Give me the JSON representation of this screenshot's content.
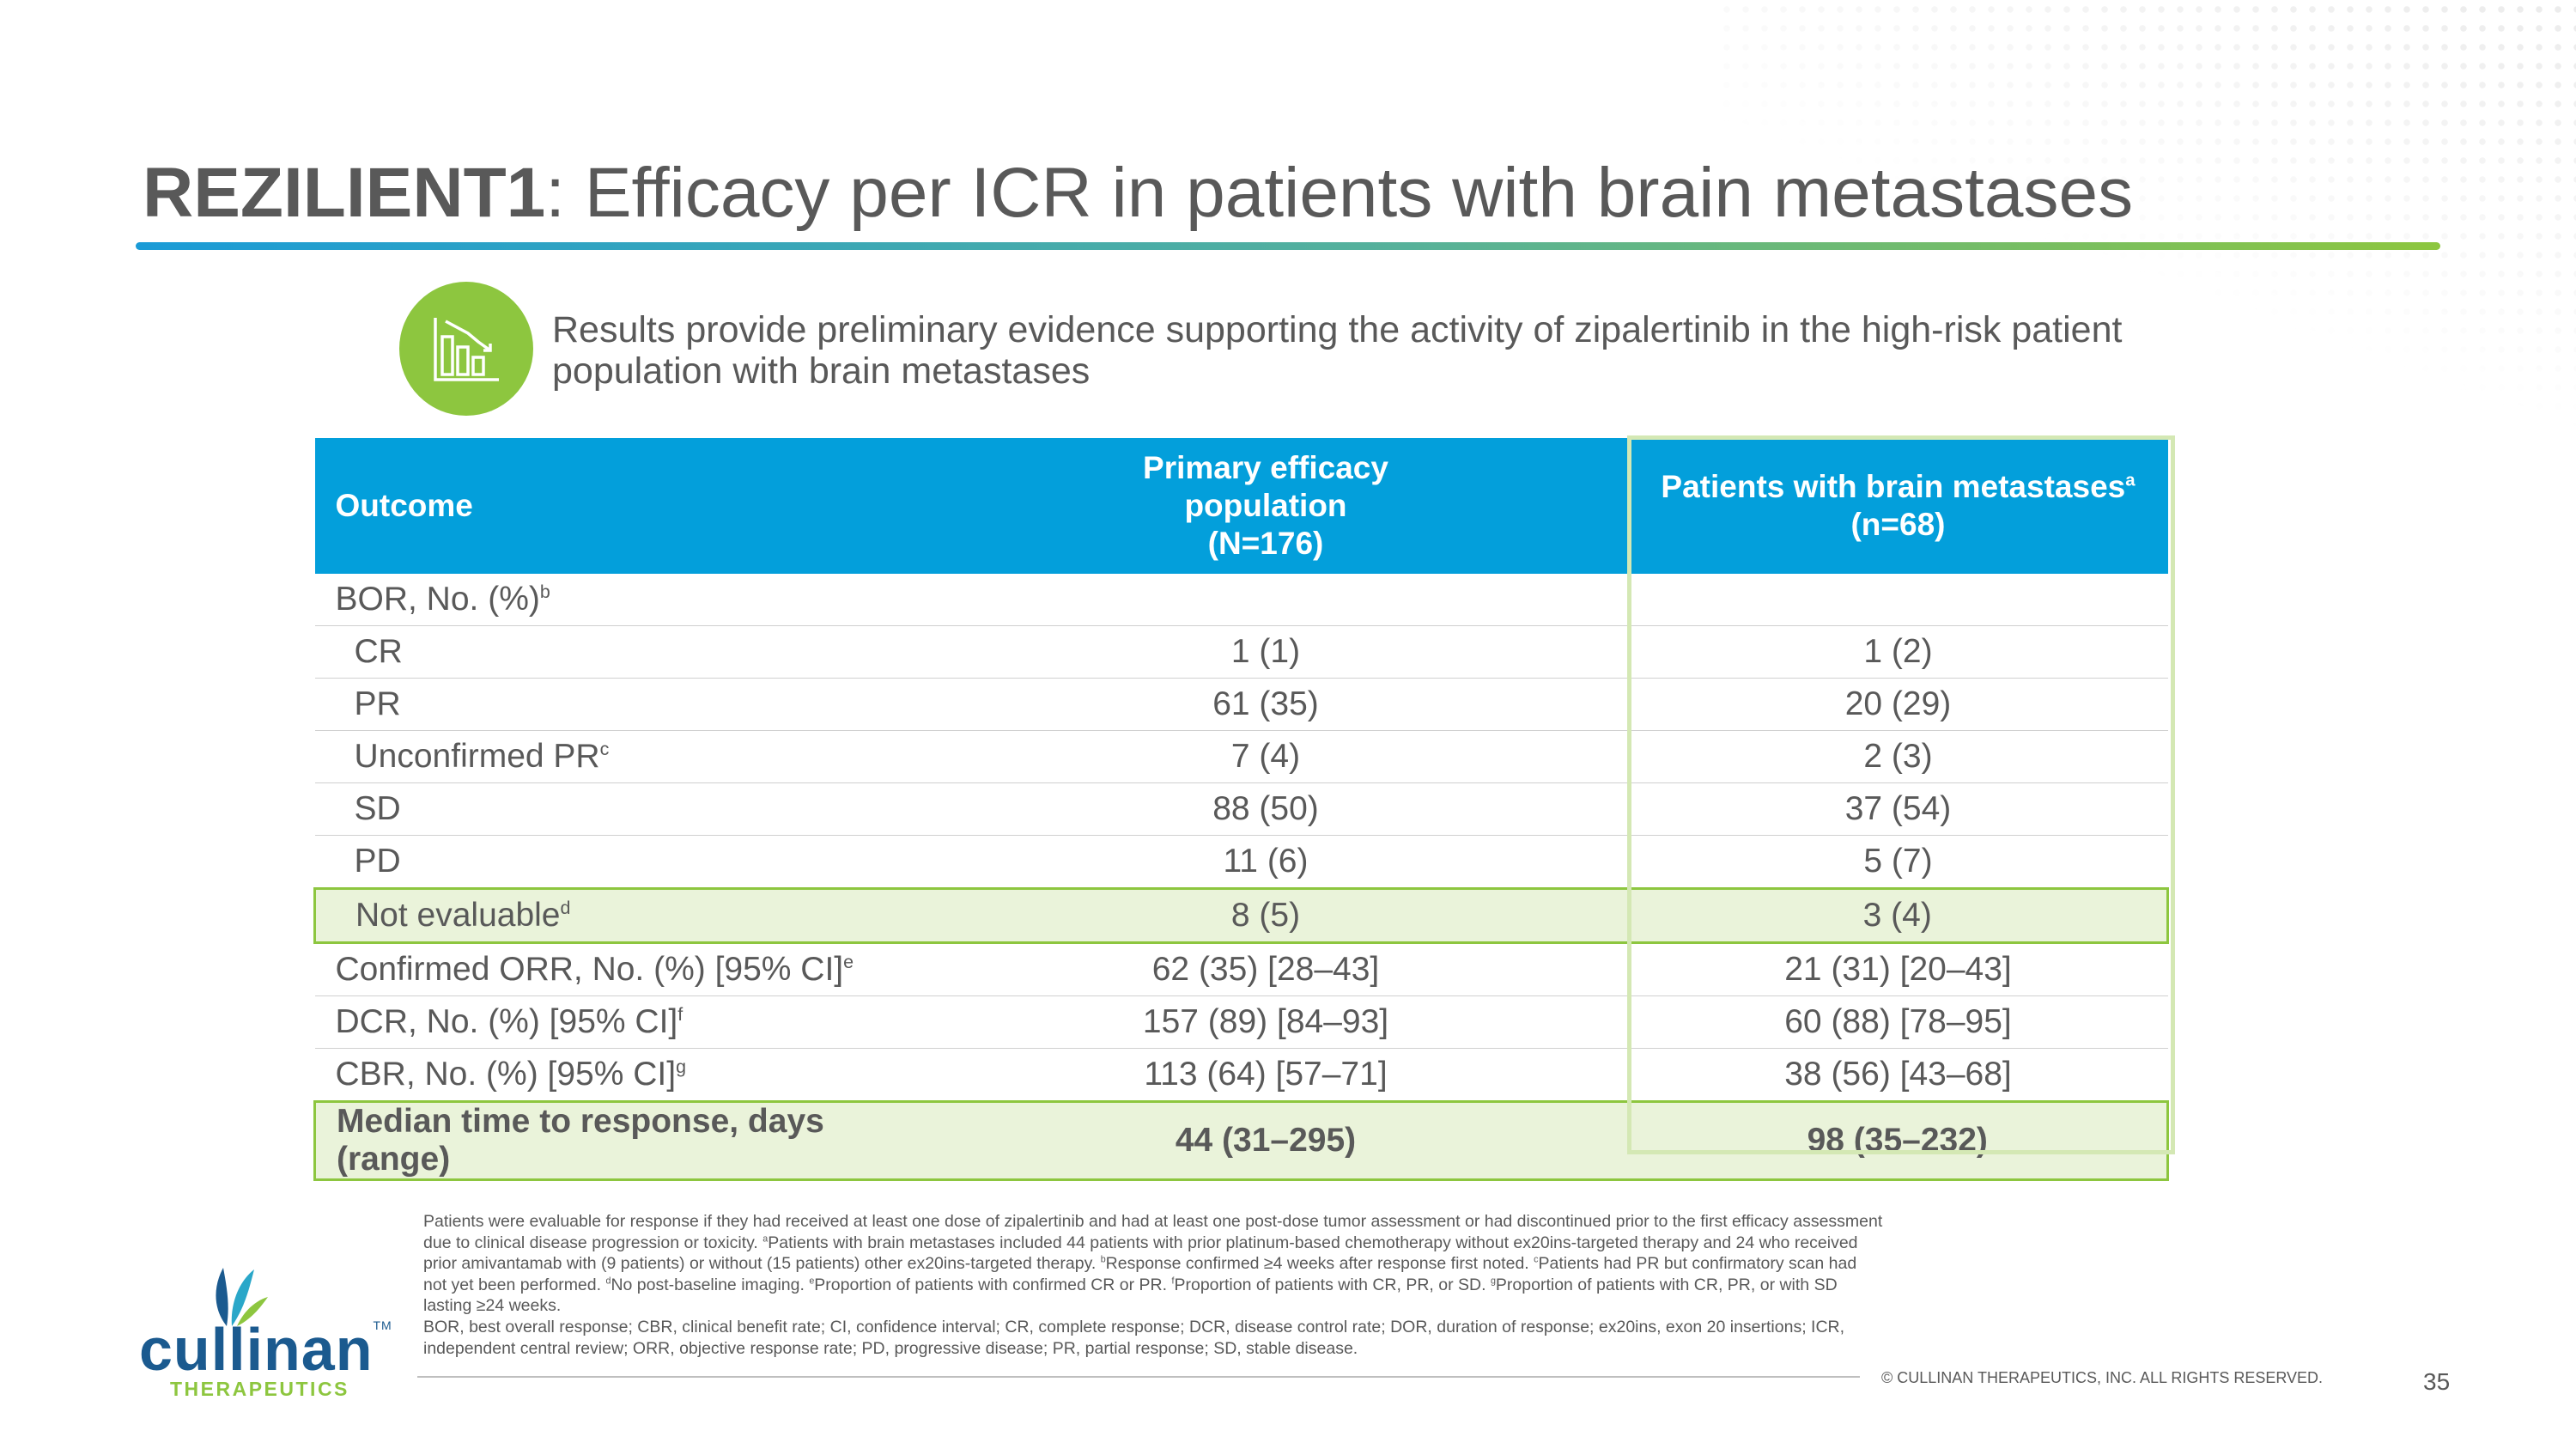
{
  "slide": {
    "title_bold": "REZILIENT1",
    "title_rest": ": Efficacy per ICR in patients with brain metastases",
    "key_message_icon": "bar-chart-icon",
    "key_message": "Results provide preliminary evidence supporting the activity of zipalertinib in the high-risk patient population with brain metastases",
    "page_number": "35",
    "copyright": "© CULLINAN THERAPEUTICS, INC. ALL RIGHTS RESERVED."
  },
  "colors": {
    "header_blue": "#039fdb",
    "accent_green": "#8dc63f",
    "highlight_fill": "#eaf3da",
    "text_gray": "#595959",
    "logo_blue": "#1b5a8f"
  },
  "table": {
    "headers": {
      "outcome": "Outcome",
      "primary_line1": "Primary efficacy",
      "primary_line2": "population",
      "primary_line3": "(N=176)",
      "brain_line1": "Patients with brain metastases",
      "brain_sup": "a",
      "brain_line2": "(n=68)"
    },
    "rows": [
      {
        "label": "BOR, No. (%)",
        "sup": "b",
        "primary": "",
        "brain": ""
      },
      {
        "label": "CR",
        "sup": "",
        "primary": "1 (1)",
        "brain": "1 (2)"
      },
      {
        "label": "PR",
        "sup": "",
        "primary": "61 (35)",
        "brain": "20 (29)"
      },
      {
        "label": "Unconfirmed PR",
        "sup": "c",
        "primary": "7 (4)",
        "brain": "2 (3)"
      },
      {
        "label": "SD",
        "sup": "",
        "primary": "88 (50)",
        "brain": "37 (54)"
      },
      {
        "label": "PD",
        "sup": "",
        "primary": "11 (6)",
        "brain": "5 (7)"
      },
      {
        "label": "Not evaluable",
        "sup": "d",
        "primary": "8 (5)",
        "brain": "3 (4)"
      },
      {
        "label": "Confirmed ORR, No. (%) [95% CI]",
        "sup": "e",
        "primary": "62 (35) [28–43]",
        "brain": "21 (31) [20–43]"
      },
      {
        "label": "DCR, No. (%) [95% CI]",
        "sup": "f",
        "primary": "157 (89) [84–93]",
        "brain": "60 (88) [78–95]"
      },
      {
        "label": "CBR, No. (%) [95% CI]",
        "sup": "g",
        "primary": "113 (64) [57–71]",
        "brain": "38 (56) [43–68]"
      },
      {
        "label": "Median time to response, days (range)",
        "sup": "",
        "primary": "44 (31–295)",
        "brain": "98 (35–232)"
      }
    ]
  },
  "footnotes": {
    "text1": "Patients were evaluable for response if they had received at least one dose of zipalertinib and had at least one post-dose tumor assessment or had discontinued prior to the first efficacy assessment due to clinical disease progression or toxicity. ",
    "sup_a": "a",
    "text_a": "Patients with brain metastases included 44 patients with prior platinum-based chemotherapy without ex20ins-targeted therapy and 24 who received prior amivantamab with (9 patients) or without (15 patients) other ex20ins-targeted therapy. ",
    "sup_b": "b",
    "text_b": "Response confirmed ≥4 weeks after response first noted. ",
    "sup_c": "c",
    "text_c": "Patients had PR but confirmatory scan had not yet been performed. ",
    "sup_d": "d",
    "text_d": "No post-baseline imaging. ",
    "sup_e": "e",
    "text_e": "Proportion of patients with confirmed CR or PR. ",
    "sup_f": "f",
    "text_f": "Proportion of patients with CR, PR, or SD. ",
    "sup_g": "g",
    "text_g": "Proportion of patients with CR, PR, or with SD lasting ≥24 weeks.",
    "abbreviations": "BOR, best overall response; CBR, clinical benefit rate; CI, confidence interval; CR, complete response; DCR, disease control rate; DOR, duration of response; ex20ins, exon 20 insertions; ICR, independent central review; ORR, objective response rate; PD, progressive disease; PR, partial response; SD, stable disease."
  },
  "logo": {
    "name": "cullinan",
    "tm": "TM",
    "sub": "THERAPEUTICS"
  }
}
